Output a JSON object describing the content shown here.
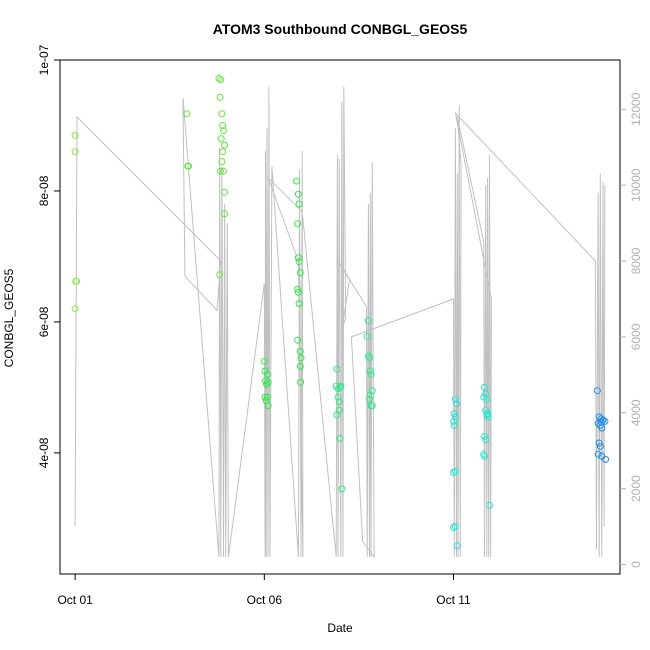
{
  "chart_data": {
    "type": "scatter",
    "title": "ATOM3 Southbound CONBGL_GEOS5",
    "xlabel": "Date",
    "ylabel": "CONBGL_GEOS5",
    "x_ticks": [
      "Oct 01",
      "Oct 06",
      "Oct 11"
    ],
    "x_tick_days": [
      1,
      6,
      11
    ],
    "xlim": [
      0.6,
      15.4
    ],
    "ylim": [
      2.15e-08,
      1e-07
    ],
    "y_ticks": [
      "4e-08",
      "6e-08",
      "8e-08",
      "1e-07"
    ],
    "y_tick_values": [
      4e-08,
      6e-08,
      8e-08,
      1e-07
    ],
    "y2_ticks": [
      "0",
      "2000",
      "4000",
      "6000",
      "8000",
      "10000",
      "12000"
    ],
    "y2_tick_values": [
      0,
      2000,
      4000,
      6000,
      8000,
      10000,
      12000
    ],
    "y2lim": [
      -250,
      13300
    ],
    "altitude_color": "#c0c0c0",
    "point_colors": {
      "early": "#86e83a",
      "mid": "#2eea46",
      "late": "#1ee8d6",
      "last": "#1e8ee8"
    },
    "series": [
      {
        "color": "#86e83a",
        "points": [
          [
            1.0,
            8.85e-08
          ],
          [
            1.0,
            8.6e-08
          ],
          [
            1.02,
            6.62e-08
          ],
          [
            1.04,
            6.62e-08
          ],
          [
            1.0,
            6.2e-08
          ]
        ]
      },
      {
        "color": "#60e83a",
        "points": [
          [
            3.95,
            9.18e-08
          ],
          [
            3.98,
            8.38e-08
          ],
          [
            4.0,
            8.38e-08
          ],
          [
            4.8,
            9.72e-08
          ],
          [
            4.85,
            9.7e-08
          ],
          [
            4.83,
            9.43e-08
          ],
          [
            4.88,
            9.18e-08
          ],
          [
            4.9,
            9e-08
          ],
          [
            4.92,
            8.92e-08
          ],
          [
            4.86,
            8.8e-08
          ],
          [
            4.95,
            8.7e-08
          ],
          [
            4.9,
            8.6e-08
          ],
          [
            4.88,
            8.45e-08
          ],
          [
            4.84,
            8.3e-08
          ],
          [
            4.92,
            8.3e-08
          ],
          [
            4.95,
            7.98e-08
          ],
          [
            4.95,
            7.65e-08
          ],
          [
            4.82,
            6.72e-08
          ]
        ]
      },
      {
        "color": "#2eea46",
        "points": [
          [
            6.0,
            5.4e-08
          ],
          [
            6.02,
            5.25e-08
          ],
          [
            6.08,
            5.2e-08
          ],
          [
            6.03,
            5.1e-08
          ],
          [
            6.06,
            5.05e-08
          ],
          [
            6.1,
            5.08e-08
          ],
          [
            6.02,
            4.85e-08
          ],
          [
            6.05,
            4.8e-08
          ],
          [
            6.08,
            4.85e-08
          ],
          [
            6.1,
            4.72e-08
          ],
          [
            6.85,
            8.15e-08
          ],
          [
            6.9,
            7.95e-08
          ],
          [
            6.92,
            7.8e-08
          ],
          [
            6.88,
            7.5e-08
          ],
          [
            6.9,
            6.98e-08
          ],
          [
            6.92,
            6.92e-08
          ],
          [
            6.95,
            6.75e-08
          ],
          [
            6.88,
            6.5e-08
          ],
          [
            6.9,
            6.45e-08
          ],
          [
            6.92,
            6.28e-08
          ],
          [
            6.88,
            5.72e-08
          ],
          [
            6.95,
            5.55e-08
          ],
          [
            6.97,
            5.45e-08
          ],
          [
            6.95,
            5.32e-08
          ],
          [
            6.96,
            5.08e-08
          ]
        ]
      },
      {
        "color": "#2eea8a",
        "points": [
          [
            7.92,
            5.28e-08
          ],
          [
            7.9,
            5.02e-08
          ],
          [
            7.95,
            4.98e-08
          ],
          [
            8.0,
            5e-08
          ],
          [
            8.02,
            5.02e-08
          ],
          [
            7.95,
            4.85e-08
          ],
          [
            7.98,
            4.78e-08
          ],
          [
            7.92,
            4.58e-08
          ],
          [
            7.98,
            4.65e-08
          ],
          [
            8.0,
            4.22e-08
          ],
          [
            8.05,
            3.45e-08
          ],
          [
            8.75,
            6.02e-08
          ],
          [
            8.72,
            5.78e-08
          ],
          [
            8.75,
            5.48e-08
          ],
          [
            8.78,
            5.45e-08
          ],
          [
            8.8,
            5.25e-08
          ],
          [
            8.82,
            5.2e-08
          ],
          [
            8.85,
            4.95e-08
          ],
          [
            8.8,
            4.88e-08
          ],
          [
            8.78,
            4.82e-08
          ],
          [
            8.82,
            4.72e-08
          ],
          [
            8.85,
            4.72e-08
          ]
        ]
      },
      {
        "color": "#1ee8d6",
        "points": [
          [
            11.05,
            4.82e-08
          ],
          [
            11.08,
            4.75e-08
          ],
          [
            11.02,
            4.6e-08
          ],
          [
            11.05,
            4.55e-08
          ],
          [
            11.0,
            4.48e-08
          ],
          [
            11.02,
            4.42e-08
          ],
          [
            11.05,
            3.72e-08
          ],
          [
            11.0,
            3.7e-08
          ],
          [
            11.05,
            2.88e-08
          ],
          [
            11.0,
            2.86e-08
          ],
          [
            11.1,
            2.58e-08
          ],
          [
            11.82,
            5e-08
          ],
          [
            11.85,
            4.9e-08
          ],
          [
            11.8,
            4.85e-08
          ],
          [
            11.88,
            4.82e-08
          ],
          [
            11.85,
            4.65e-08
          ],
          [
            11.9,
            4.6e-08
          ],
          [
            11.92,
            4.55e-08
          ],
          [
            11.88,
            4.58e-08
          ],
          [
            11.82,
            4.25e-08
          ],
          [
            11.85,
            4.2e-08
          ],
          [
            11.8,
            3.98e-08
          ],
          [
            11.82,
            3.95e-08
          ],
          [
            11.95,
            3.2e-08
          ]
        ]
      },
      {
        "color": "#1e8ee8",
        "points": [
          [
            14.8,
            4.95e-08
          ],
          [
            14.85,
            4.55e-08
          ],
          [
            14.9,
            4.52e-08
          ],
          [
            14.95,
            4.5e-08
          ],
          [
            15.0,
            4.48e-08
          ],
          [
            14.82,
            4.45e-08
          ],
          [
            14.88,
            4.42e-08
          ],
          [
            14.92,
            4.38e-08
          ],
          [
            14.85,
            4.15e-08
          ],
          [
            14.88,
            4.1e-08
          ],
          [
            14.82,
            3.98e-08
          ],
          [
            14.92,
            3.95e-08
          ],
          [
            15.02,
            3.9e-08
          ],
          [
            14.95,
            4.5e-08
          ],
          [
            14.9,
            4.47e-08
          ]
        ]
      }
    ],
    "altitude_path": [
      [
        1.0,
        1000
      ],
      [
        1.05,
        11800
      ],
      [
        4.85,
        8000
      ],
      [
        4.75,
        6700
      ],
      [
        3.9,
        7600
      ],
      [
        3.85,
        12300
      ],
      [
        4.8,
        200
      ],
      [
        4.82,
        11000
      ],
      [
        4.85,
        200
      ],
      [
        4.88,
        10500
      ],
      [
        4.92,
        200
      ],
      [
        4.95,
        9500
      ],
      [
        4.98,
        200
      ],
      [
        5.02,
        9000
      ],
      [
        5.05,
        200
      ],
      [
        6.0,
        7400
      ],
      [
        6.02,
        200
      ],
      [
        6.03,
        10900
      ],
      [
        6.05,
        200
      ],
      [
        6.07,
        11500
      ],
      [
        6.1,
        200
      ],
      [
        6.12,
        12600
      ],
      [
        6.15,
        200
      ],
      [
        6.2,
        10500
      ],
      [
        6.9,
        200
      ],
      [
        6.93,
        10400
      ],
      [
        6.97,
        200
      ],
      [
        7.0,
        10900
      ],
      [
        7.02,
        200
      ],
      [
        6.9,
        8000
      ],
      [
        6.1,
        10200
      ],
      [
        7.0,
        9300
      ],
      [
        7.9,
        200
      ],
      [
        7.93,
        10800
      ],
      [
        7.95,
        200
      ],
      [
        7.98,
        10700
      ],
      [
        8.02,
        200
      ],
      [
        8.05,
        12200
      ],
      [
        8.08,
        200
      ],
      [
        8.1,
        12600
      ],
      [
        8.15,
        6500
      ],
      [
        8.05,
        6200
      ],
      [
        8.25,
        7500
      ],
      [
        7.95,
        8000
      ],
      [
        8.7,
        6800
      ],
      [
        8.72,
        200
      ],
      [
        8.75,
        9500
      ],
      [
        8.78,
        200
      ],
      [
        8.8,
        9800
      ],
      [
        8.82,
        200
      ],
      [
        8.85,
        10600
      ],
      [
        8.9,
        200
      ],
      [
        8.6,
        600
      ],
      [
        8.3,
        6000
      ],
      [
        11.0,
        7000
      ],
      [
        11.02,
        200
      ],
      [
        11.05,
        11500
      ],
      [
        11.08,
        200
      ],
      [
        11.1,
        10300
      ],
      [
        11.12,
        200
      ],
      [
        11.15,
        12100
      ],
      [
        11.18,
        200
      ],
      [
        11.2,
        10500
      ],
      [
        11.1,
        11800
      ],
      [
        11.8,
        8500
      ],
      [
        11.82,
        200
      ],
      [
        11.85,
        10000
      ],
      [
        11.88,
        200
      ],
      [
        11.9,
        10200
      ],
      [
        11.93,
        200
      ],
      [
        11.95,
        10800
      ],
      [
        11.98,
        200
      ],
      [
        12.0,
        7000
      ],
      [
        11.05,
        11900
      ],
      [
        14.75,
        8000
      ],
      [
        14.78,
        400
      ],
      [
        14.82,
        9800
      ],
      [
        14.85,
        200
      ],
      [
        14.88,
        10300
      ],
      [
        14.92,
        200
      ],
      [
        14.95,
        10100
      ],
      [
        14.98,
        1000
      ],
      [
        15.0,
        10000
      ]
    ]
  }
}
